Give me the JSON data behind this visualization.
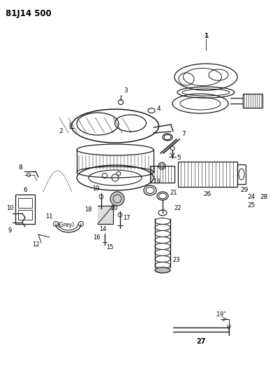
{
  "title": "81J14 500",
  "bg_color": "#ffffff",
  "line_color": "#1a1a1a",
  "fig_width": 3.94,
  "fig_height": 5.33,
  "dpi": 100
}
